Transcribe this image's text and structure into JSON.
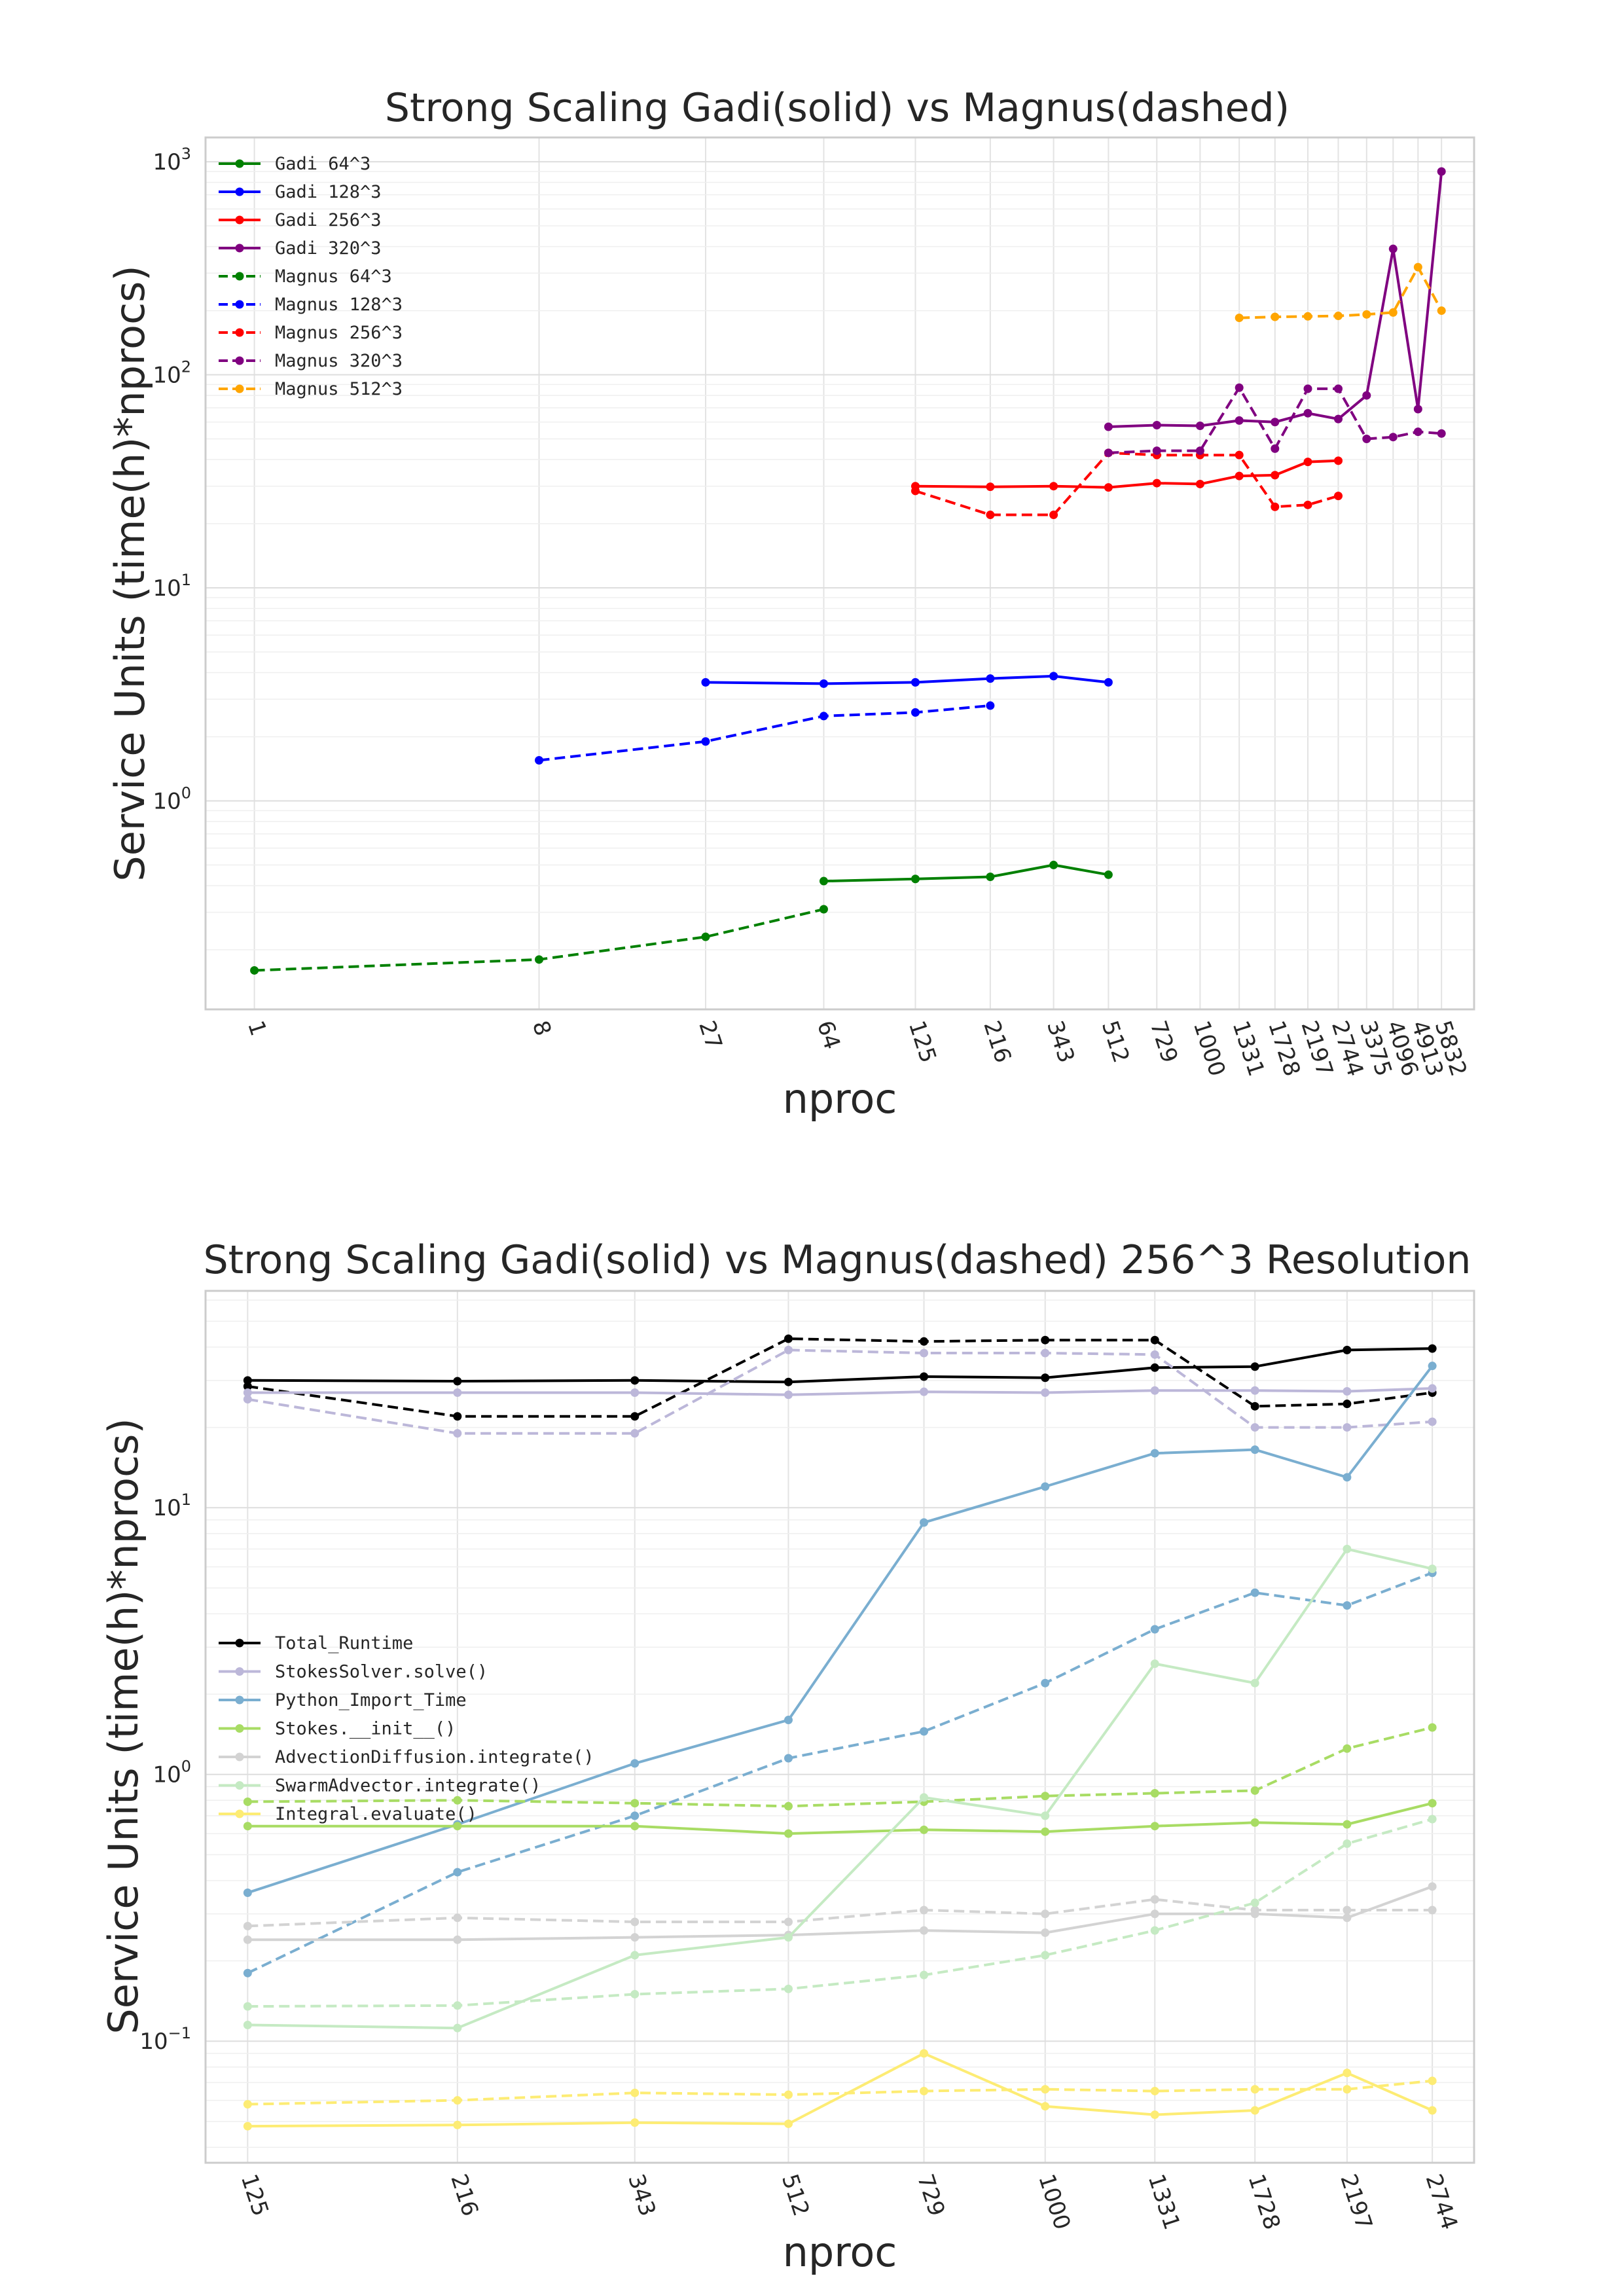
{
  "chart_data": [
    {
      "type": "line",
      "title": "Strong Scaling Gadi(solid) vs Magnus(dashed)",
      "xlabel": "nproc",
      "ylabel": "Service Units (time(h)*nprocs)",
      "xscale": "log",
      "yscale": "log",
      "xlim": [
        0.7,
        7400
      ],
      "ylim": [
        0.105,
        1300
      ],
      "x_ticks": [
        1,
        8,
        27,
        64,
        125,
        216,
        343,
        512,
        729,
        1000,
        1331,
        1728,
        2197,
        2744,
        3375,
        4096,
        4913,
        5832
      ],
      "x_tick_labels": [
        "1",
        "8",
        "27",
        "64",
        "125",
        "216",
        "343",
        "512",
        "729",
        "1000",
        "1331",
        "1728",
        "2197",
        "2744",
        "3375",
        "4096",
        "4913",
        "5832"
      ],
      "y_ticks": [
        1,
        10,
        100,
        1000
      ],
      "y_tick_labels": [
        {
          "base": "10",
          "exp": "0"
        },
        {
          "base": "10",
          "exp": "1"
        },
        {
          "base": "10",
          "exp": "2"
        },
        {
          "base": "10",
          "exp": "3"
        }
      ],
      "grid": true,
      "legend_position": "top-left",
      "series": [
        {
          "name": "Gadi    64^3",
          "color": "#008000",
          "style": "solid",
          "x": [
            64,
            125,
            216,
            343,
            512
          ],
          "y": [
            0.42,
            0.43,
            0.44,
            0.5,
            0.45
          ]
        },
        {
          "name": "Gadi   128^3",
          "color": "#0000ff",
          "style": "solid",
          "x": [
            27,
            64,
            125,
            216,
            343,
            512
          ],
          "y": [
            3.6,
            3.55,
            3.6,
            3.75,
            3.85,
            3.6
          ]
        },
        {
          "name": "Gadi   256^3",
          "color": "#ff0000",
          "style": "solid",
          "x": [
            125,
            216,
            343,
            512,
            729,
            1000,
            1331,
            1728,
            2197,
            2744
          ],
          "y": [
            30,
            29.8,
            30,
            29.6,
            31,
            30.7,
            33.5,
            33.8,
            39,
            39.5
          ]
        },
        {
          "name": "Gadi   320^3",
          "color": "#800080",
          "style": "solid",
          "x": [
            512,
            729,
            1000,
            1331,
            1728,
            2197,
            2744,
            3375,
            4096,
            4913,
            5832
          ],
          "y": [
            57,
            58,
            57.6,
            61,
            60,
            66,
            62,
            80,
            390,
            69,
            900
          ]
        },
        {
          "name": "Magnus  64^3",
          "color": "#008000",
          "style": "dashed",
          "x": [
            1,
            8,
            27,
            64
          ],
          "y": [
            0.16,
            0.18,
            0.23,
            0.31
          ]
        },
        {
          "name": "Magnus 128^3",
          "color": "#0000ff",
          "style": "dashed",
          "x": [
            8,
            27,
            64,
            125,
            216
          ],
          "y": [
            1.55,
            1.9,
            2.5,
            2.6,
            2.8
          ]
        },
        {
          "name": "Magnus 256^3",
          "color": "#ff0000",
          "style": "dashed",
          "x": [
            125,
            216,
            343,
            512,
            729,
            1000,
            1331,
            1728,
            2197,
            2744
          ],
          "y": [
            28.5,
            22,
            22,
            43,
            42,
            42,
            42,
            24,
            24.5,
            27
          ]
        },
        {
          "name": "Magnus 320^3",
          "color": "#800080",
          "style": "dashed",
          "x": [
            512,
            729,
            1000,
            1331,
            1728,
            2197,
            2744,
            3375,
            4096,
            4913,
            5832
          ],
          "y": [
            43,
            44,
            44,
            87,
            45,
            86,
            86,
            50,
            51,
            54,
            53
          ]
        },
        {
          "name": "Magnus 512^3",
          "color": "#ffa500",
          "style": "dashed",
          "x": [
            1331,
            1728,
            2197,
            2744,
            3375,
            4096,
            4913,
            5832
          ],
          "y": [
            185,
            187,
            188,
            189,
            192,
            196,
            320,
            200
          ]
        }
      ]
    },
    {
      "type": "line",
      "title": "Strong Scaling Gadi(solid) vs Magnus(dashed) 256^3 Resolution",
      "xlabel": "nproc",
      "ylabel": "Service Units (time(h)*nprocs)",
      "xscale": "log",
      "yscale": "log",
      "xlim": [
        112,
        3060
      ],
      "ylim": [
        0.035,
        65
      ],
      "x_ticks": [
        125,
        216,
        343,
        512,
        729,
        1000,
        1331,
        1728,
        2197,
        2744
      ],
      "x_tick_labels": [
        "125",
        "216",
        "343",
        "512",
        "729",
        "1000",
        "1331",
        "1728",
        "2197",
        "2744"
      ],
      "y_ticks": [
        0.1,
        1,
        10
      ],
      "y_tick_labels": [
        {
          "base": "10",
          "exp": "−1"
        },
        {
          "base": "10",
          "exp": "0"
        },
        {
          "base": "10",
          "exp": "1"
        }
      ],
      "grid": true,
      "legend_position": "center-left",
      "legend": [
        {
          "name": "Total_Runtime",
          "color": "#000000"
        },
        {
          "name": "StokesSolver.solve()",
          "color": "#bcb7d9"
        },
        {
          "name": "Python_Import_Time",
          "color": "#7aaed0"
        },
        {
          "name": "Stokes.__init__()",
          "color": "#a8dc64"
        },
        {
          "name": "AdvectionDiffusion.integrate()",
          "color": "#d3d3d3"
        },
        {
          "name": "SwarmAdvector.integrate()",
          "color": "#c5eac3"
        },
        {
          "name": "Integral.evaluate()",
          "color": "#fdec74"
        }
      ],
      "x": [
        125,
        216,
        343,
        512,
        729,
        1000,
        1331,
        1728,
        2197,
        2744
      ],
      "series": [
        {
          "label": "Total_Runtime Gadi",
          "color": "#000000",
          "style": "solid",
          "y": [
            30,
            29.8,
            30,
            29.6,
            31,
            30.7,
            33.5,
            33.8,
            39,
            39.5
          ]
        },
        {
          "label": "Total_Runtime Magnus",
          "color": "#000000",
          "style": "dashed",
          "y": [
            28.5,
            22,
            22,
            43,
            42,
            42.5,
            42.5,
            24,
            24.5,
            27
          ]
        },
        {
          "label": "StokesSolver.solve() Gadi",
          "color": "#bcb7d9",
          "style": "solid",
          "y": [
            27,
            27,
            27,
            26.5,
            27.2,
            27,
            27.5,
            27.5,
            27.3,
            28
          ]
        },
        {
          "label": "StokesSolver.solve() Magnus",
          "color": "#bcb7d9",
          "style": "dashed",
          "y": [
            25.5,
            19,
            19,
            39,
            38,
            38,
            37.5,
            20,
            20,
            21
          ]
        },
        {
          "label": "Python_Import_Time Gadi",
          "color": "#7aaed0",
          "style": "solid",
          "y": [
            0.36,
            0.65,
            1.1,
            1.6,
            8.8,
            12,
            16,
            16.5,
            13,
            34
          ]
        },
        {
          "label": "Python_Import_Time Magnus",
          "color": "#7aaed0",
          "style": "dashed",
          "y": [
            0.18,
            0.43,
            0.7,
            1.15,
            1.45,
            2.2,
            3.5,
            4.8,
            4.3,
            5.7
          ]
        },
        {
          "label": "Stokes.__init__() Gadi",
          "color": "#a8dc64",
          "style": "solid",
          "y": [
            0.64,
            0.64,
            0.64,
            0.6,
            0.62,
            0.61,
            0.64,
            0.66,
            0.65,
            0.78
          ]
        },
        {
          "label": "Stokes.__init__() Magnus",
          "color": "#a8dc64",
          "style": "dashed",
          "y": [
            0.79,
            0.8,
            0.78,
            0.76,
            0.79,
            0.83,
            0.85,
            0.87,
            1.25,
            1.5
          ]
        },
        {
          "label": "AdvectionDiffusion.integrate() Gadi",
          "color": "#d3d3d3",
          "style": "solid",
          "y": [
            0.24,
            0.24,
            0.245,
            0.25,
            0.26,
            0.255,
            0.3,
            0.3,
            0.29,
            0.38
          ]
        },
        {
          "label": "AdvectionDiffusion.integrate() Magnus",
          "color": "#d3d3d3",
          "style": "dashed",
          "y": [
            0.27,
            0.29,
            0.28,
            0.28,
            0.31,
            0.3,
            0.34,
            0.31,
            0.31,
            0.31
          ]
        },
        {
          "label": "SwarmAdvector.integrate() Gadi",
          "color": "#c5eac3",
          "style": "solid",
          "y": [
            0.115,
            0.112,
            0.21,
            0.245,
            0.82,
            0.7,
            2.6,
            2.2,
            7,
            5.9
          ]
        },
        {
          "label": "SwarmAdvector.integrate() Magnus",
          "color": "#c5eac3",
          "style": "dashed",
          "y": [
            0.135,
            0.136,
            0.15,
            0.157,
            0.177,
            0.21,
            0.26,
            0.33,
            0.55,
            0.68
          ]
        },
        {
          "label": "Integral.evaluate() Gadi",
          "color": "#fdec74",
          "style": "solid",
          "y": [
            0.048,
            0.0485,
            0.0495,
            0.049,
            0.09,
            0.057,
            0.053,
            0.055,
            0.076,
            0.055
          ]
        },
        {
          "label": "Integral.evaluate() Magnus",
          "color": "#fdec74",
          "style": "dashed",
          "y": [
            0.058,
            0.06,
            0.064,
            0.063,
            0.065,
            0.066,
            0.065,
            0.066,
            0.066,
            0.071
          ]
        }
      ]
    }
  ]
}
